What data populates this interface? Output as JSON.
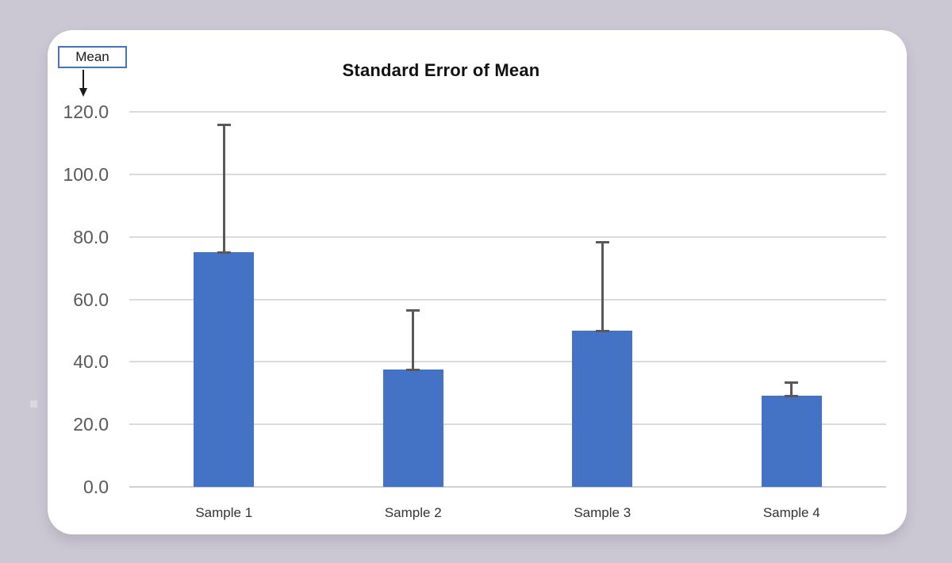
{
  "page": {
    "background_color": "#cbc7d3"
  },
  "annotation": {
    "label": "Mean"
  },
  "chart_data": {
    "type": "bar",
    "title": "Standard Error of Mean",
    "categories": [
      "Sample 1",
      "Sample 2",
      "Sample 3",
      "Sample 4"
    ],
    "series": [
      {
        "name": "Mean",
        "values": [
          75.0,
          37.5,
          50.0,
          29.2
        ]
      }
    ],
    "error_bars": {
      "direction": "plus",
      "values": [
        41.0,
        19.0,
        28.5,
        4.3
      ]
    },
    "xlabel": "",
    "ylabel": "",
    "ylim": [
      0,
      120
    ],
    "ytick_step": 20,
    "ytick_labels": [
      "120.0",
      "100.0",
      "80.0",
      "60.0",
      "40.0",
      "20.0",
      "0.0"
    ],
    "grid": true,
    "legend": "none",
    "colors": {
      "bar": "#4472c4",
      "error_bar": "#595959",
      "gridline": "#dadada",
      "axis_line": "#d0d0d0",
      "tick_label": "#595959",
      "category_label": "#333333",
      "title": "#111111",
      "annotation_border": "#4472c4"
    }
  }
}
